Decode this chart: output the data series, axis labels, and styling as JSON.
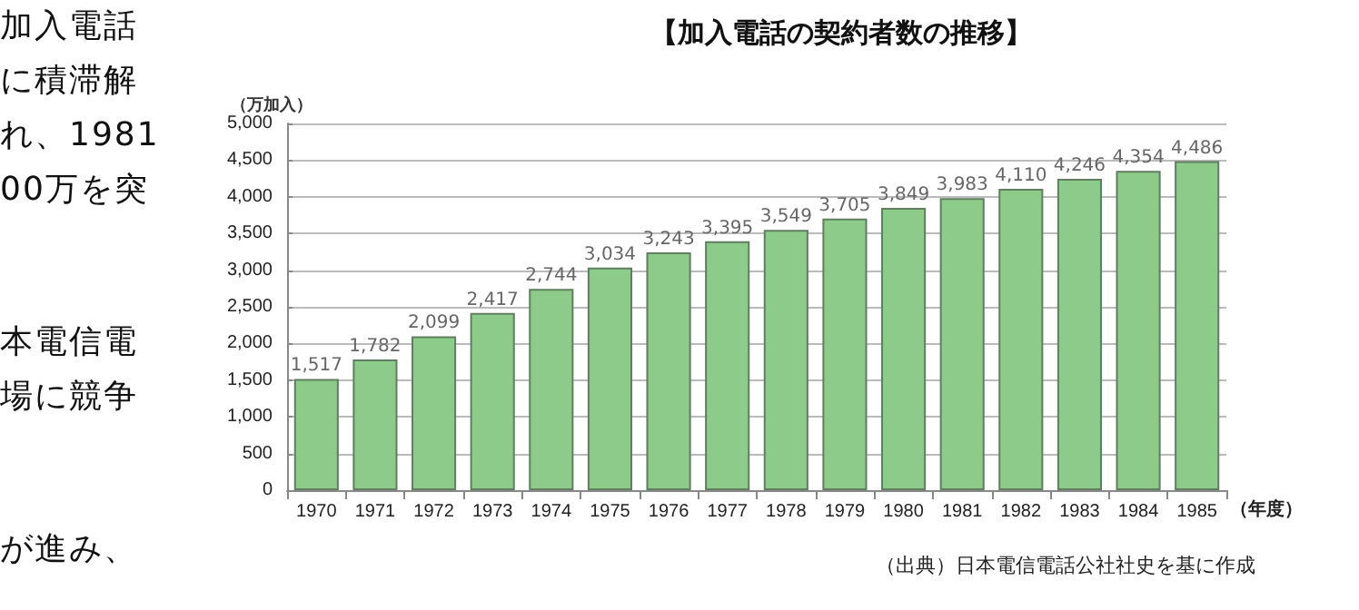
{
  "chart_data": {
    "type": "bar",
    "title": "【加入電話の契約者数の推移】",
    "xlabel": "（年度）",
    "ylabel": "（万加入）",
    "categories": [
      "1970",
      "1971",
      "1972",
      "1973",
      "1974",
      "1975",
      "1976",
      "1977",
      "1978",
      "1979",
      "1980",
      "1981",
      "1982",
      "1983",
      "1984",
      "1985"
    ],
    "values": [
      1517,
      1782,
      2099,
      2417,
      2744,
      3034,
      3243,
      3395,
      3549,
      3705,
      3849,
      3983,
      4110,
      4246,
      4354,
      4486
    ],
    "value_labels": [
      "1,517",
      "1,782",
      "2,099",
      "2,417",
      "2,744",
      "3,034",
      "3,243",
      "3,395",
      "3,549",
      "3,705",
      "3,849",
      "3,983",
      "4,110",
      "4,246",
      "4,354",
      "4,486"
    ],
    "color": "#8dcb8a",
    "ylim": [
      0,
      5000
    ],
    "yticks": [
      {
        "value": 0,
        "label": "0"
      },
      {
        "value": 500,
        "label": "500"
      },
      {
        "value": 1000,
        "label": "1,000"
      },
      {
        "value": 1500,
        "label": "1,500"
      },
      {
        "value": 2000,
        "label": "2,000"
      },
      {
        "value": 2500,
        "label": "2,500"
      },
      {
        "value": 3000,
        "label": "3,000"
      },
      {
        "value": 3500,
        "label": "3,500"
      },
      {
        "value": 4000,
        "label": "4,000"
      },
      {
        "value": 4500,
        "label": "4,500"
      },
      {
        "value": 5000,
        "label": "5,000"
      }
    ],
    "grid": "y",
    "annotations": [
      "加入電話",
      "に積滞解",
      "れ、1981",
      "00万を突",
      "本電信電",
      "場に競争",
      "が進み、",
      "（出典）日本電信電話公社社史を基に作成"
    ]
  }
}
